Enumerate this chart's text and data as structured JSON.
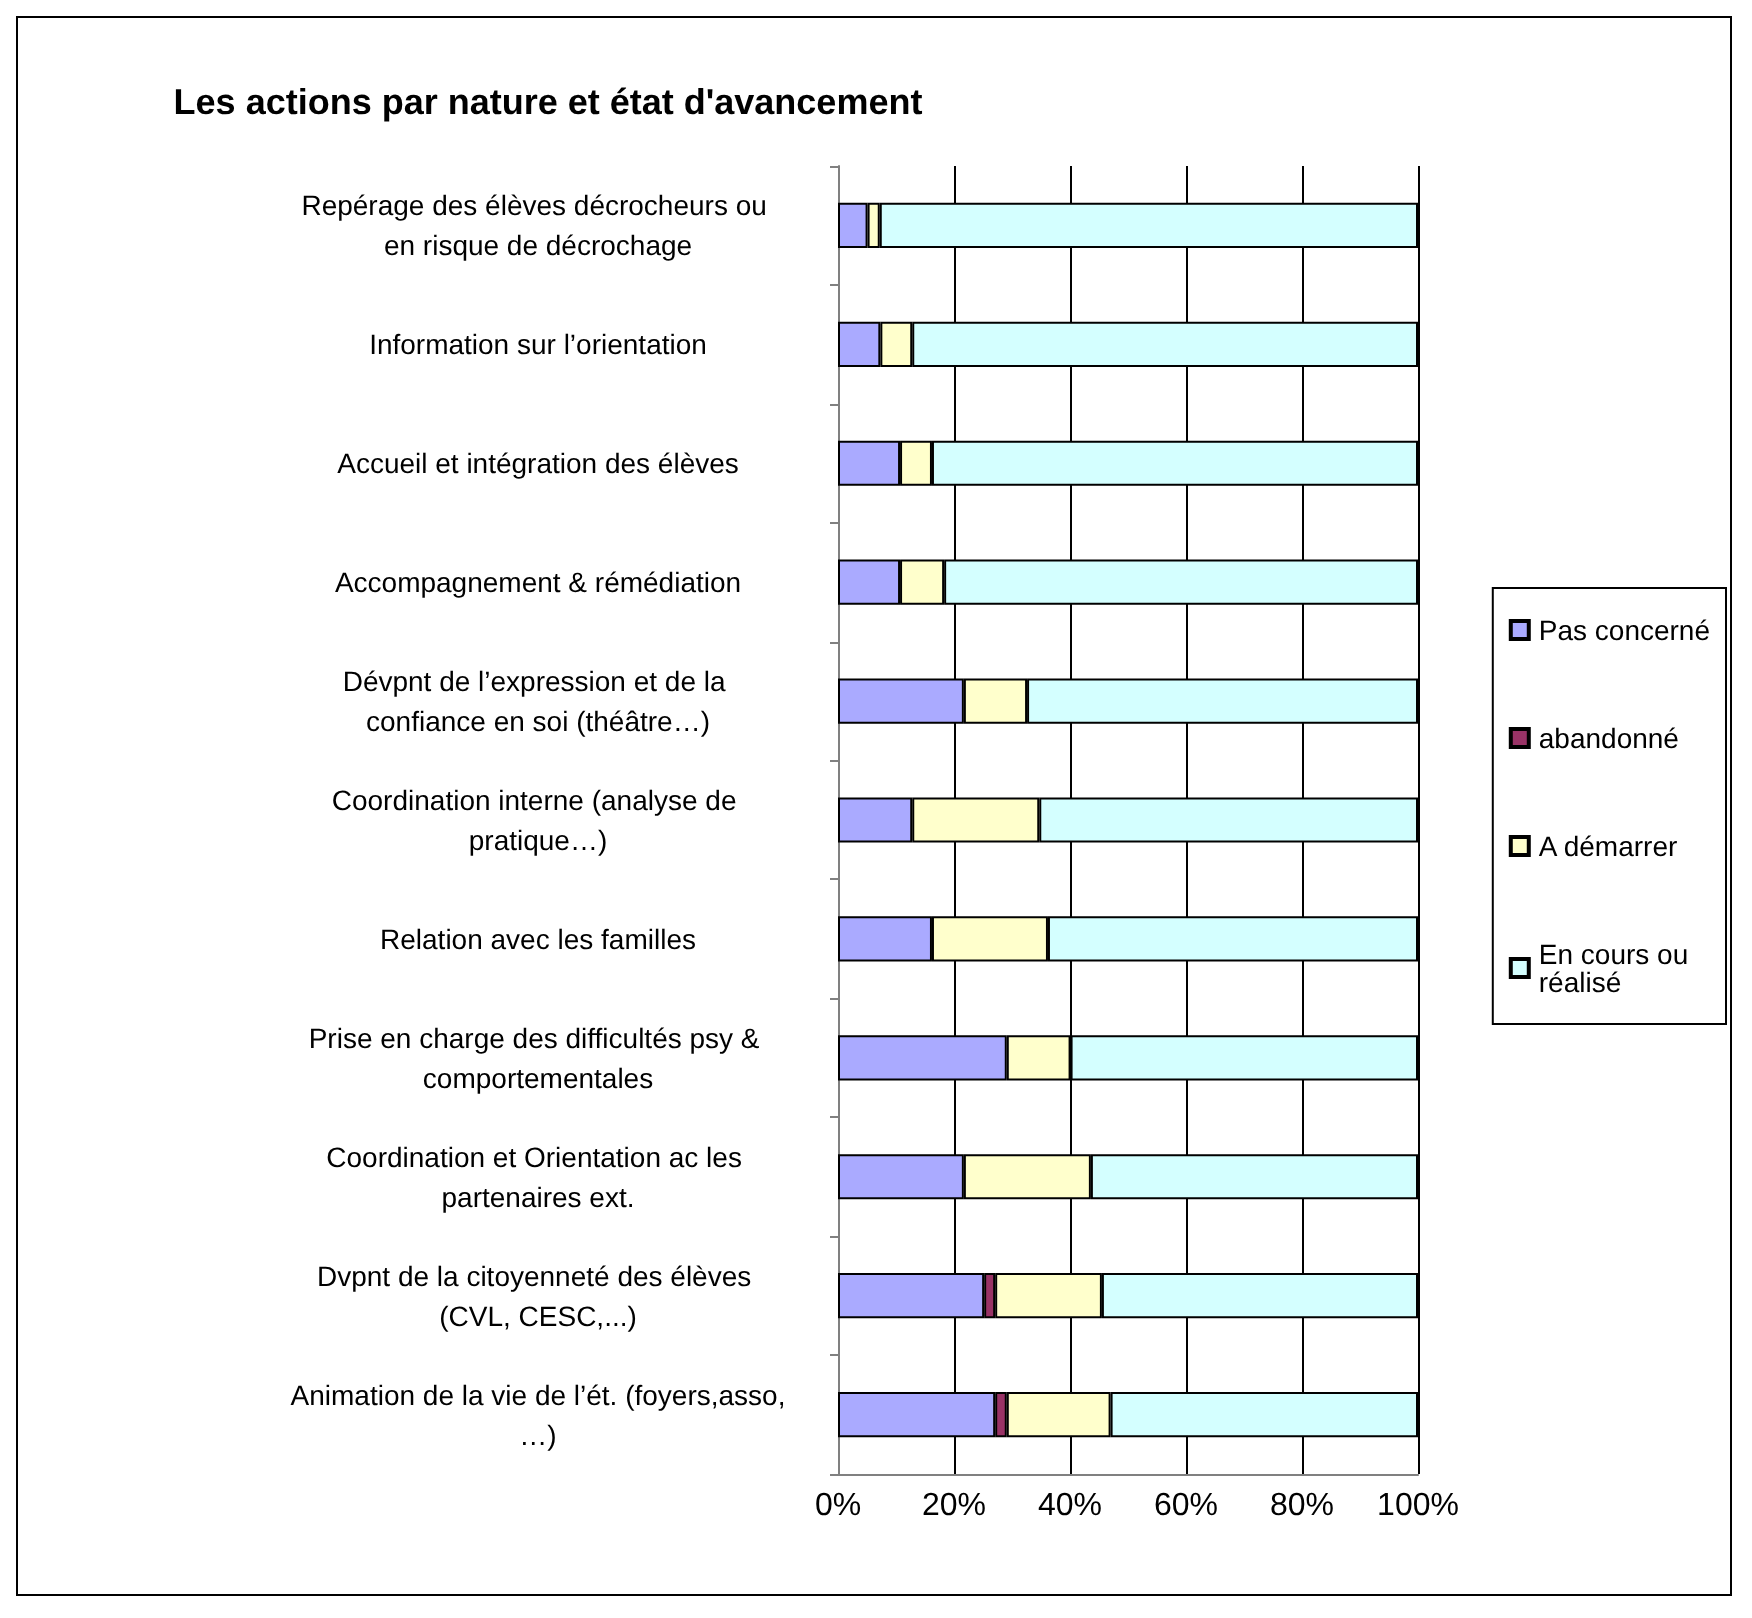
{
  "chart_data": {
    "type": "bar",
    "title": "Les actions par nature et état d'avancement",
    "orientation": "horizontal",
    "stacked": true,
    "grid": "x",
    "legend": "right",
    "xlim": [
      0,
      100
    ],
    "xticks": [
      {
        "value": 0,
        "label": "0%"
      },
      {
        "value": 20,
        "label": "20%"
      },
      {
        "value": 40,
        "label": "40%"
      },
      {
        "value": 60,
        "label": "60%"
      },
      {
        "value": 80,
        "label": "80%"
      },
      {
        "value": 100,
        "label": "100%"
      }
    ],
    "categories": [
      "Repérage des élèves décrocheurs ou en risque de décrochage",
      "Information sur l’orientation",
      "Accueil et intégration des élèves",
      "Accompagnement & rémédiation",
      "Dévpnt de l’expression et de la confiance en soi (théâtre…)",
      "Coordination interne (analyse de pratique…)",
      "Relation avec les familles",
      "Prise en charge des difficultés psy & comportementales",
      "Coordination et Orientation ac les partenaires ext.",
      "Dvpnt de la citoyenneté des élèves (CVL, CESC,...)",
      "Animation de la vie de l’ét. (foyers,asso,…)"
    ],
    "series": [
      {
        "name": "Pas concerné",
        "color": "#aaaaff",
        "values": [
          5.1,
          7.3,
          10.7,
          10.7,
          21.7,
          12.8,
          16.2,
          29.1,
          21.7,
          25.2,
          27.1
        ]
      },
      {
        "name": "abandonné",
        "color": "#993366",
        "values": [
          null,
          null,
          null,
          null,
          null,
          null,
          null,
          null,
          null,
          1.9,
          2.0
        ]
      },
      {
        "name": "A démarrer",
        "color": "#ffffcc",
        "values": [
          2.1,
          5.5,
          5.5,
          7.6,
          10.9,
          21.9,
          20.0,
          11.0,
          21.9,
          18.4,
          17.9
        ]
      },
      {
        "name": "En cours ou réalisé",
        "color": "#d4ffff",
        "values": [
          92.8,
          87.2,
          83.8,
          81.7,
          67.4,
          65.3,
          63.8,
          59.9,
          56.4,
          54.5,
          53.0
        ]
      }
    ]
  }
}
